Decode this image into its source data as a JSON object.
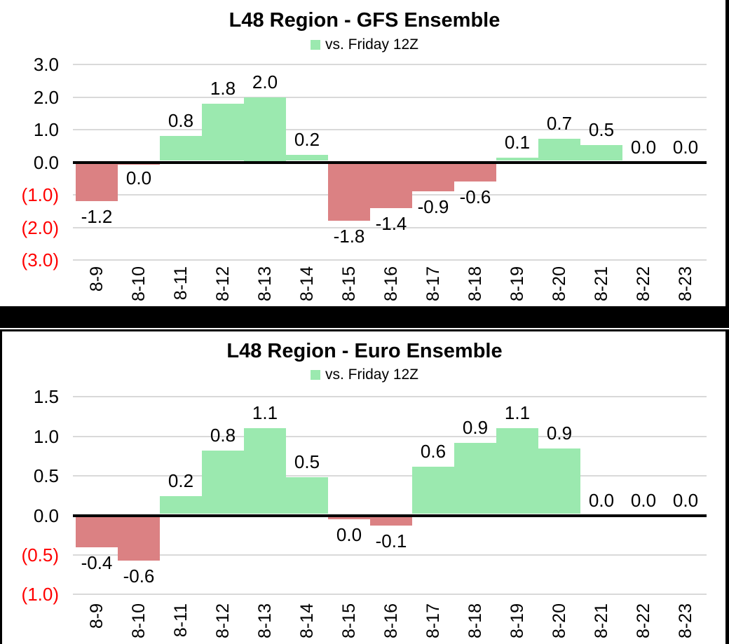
{
  "colors": {
    "positive": "#9BE9AF",
    "negative": "#DB8183",
    "gridline": "#D9D9D9",
    "zero_line": "#000000",
    "text": "#000000",
    "negative_tick": "#FF0000",
    "separator": "#000000",
    "background": "#FFFFFF"
  },
  "chart_data": [
    {
      "type": "bar",
      "title": "L48 Region - GFS Ensemble",
      "legend": "vs. Friday 12Z",
      "legend_position": "top",
      "grid": true,
      "categories": [
        "8-9",
        "8-10",
        "8-11",
        "8-12",
        "8-13",
        "8-14",
        "8-15",
        "8-16",
        "8-17",
        "8-18",
        "8-19",
        "8-20",
        "8-21",
        "8-22",
        "8-23"
      ],
      "values": [
        -1.2,
        0.0,
        0.8,
        1.8,
        2.0,
        0.2,
        -1.8,
        -1.4,
        -0.9,
        -0.6,
        0.1,
        0.7,
        0.5,
        0.0,
        0.0
      ],
      "labels": [
        "-1.2",
        "0.0",
        "0.8",
        "1.8",
        "2.0",
        "0.2",
        "-1.8",
        "-1.4",
        "-0.9",
        "-0.6",
        "0.1",
        "0.7",
        "0.5",
        "0.0",
        "0.0"
      ],
      "bar_values": [
        -1.2,
        -0.005,
        0.8,
        1.8,
        2.0,
        0.22,
        -1.8,
        -1.4,
        -0.9,
        -0.6,
        0.13,
        0.72,
        0.52,
        0.0,
        0.0
      ],
      "xlabel": "",
      "ylabel": "",
      "ylim": [
        -3.0,
        3.0
      ],
      "yticks": [
        3.0,
        2.0,
        1.0,
        0.0,
        -1.0,
        -2.0,
        -3.0
      ],
      "ytick_labels": [
        "3.0",
        "2.0",
        "1.0",
        "0.0",
        "(1.0)",
        "(2.0)",
        "(3.0)"
      ]
    },
    {
      "type": "bar",
      "title": "L48 Region - Euro Ensemble",
      "legend": "vs. Friday 12Z",
      "legend_position": "top",
      "grid": true,
      "categories": [
        "8-9",
        "8-10",
        "8-11",
        "8-12",
        "8-13",
        "8-14",
        "8-15",
        "8-16",
        "8-17",
        "8-18",
        "8-19",
        "8-20",
        "8-21",
        "8-22",
        "8-23"
      ],
      "values": [
        -0.4,
        -0.6,
        0.2,
        0.8,
        1.1,
        0.5,
        0.0,
        -0.1,
        0.6,
        0.9,
        1.1,
        0.9,
        0.0,
        0.0,
        0.0
      ],
      "labels": [
        "-0.4",
        "-0.6",
        "0.2",
        "0.8",
        "1.1",
        "0.5",
        "0.0",
        "-0.1",
        "0.6",
        "0.9",
        "1.1",
        "0.9",
        "0.0",
        "0.0",
        "0.0"
      ],
      "bar_values": [
        -0.4,
        -0.57,
        0.24,
        0.82,
        1.1,
        0.48,
        -0.045,
        -0.13,
        0.62,
        0.92,
        1.1,
        0.85,
        0.0,
        0.0,
        0.0
      ],
      "xlabel": "",
      "ylabel": "",
      "ylim": [
        -1.0,
        1.5
      ],
      "yticks": [
        1.5,
        1.0,
        0.5,
        0.0,
        -0.5,
        -1.0
      ],
      "ytick_labels": [
        "1.5",
        "1.0",
        "0.5",
        "0.0",
        "(0.5)",
        "(1.0)"
      ]
    }
  ]
}
